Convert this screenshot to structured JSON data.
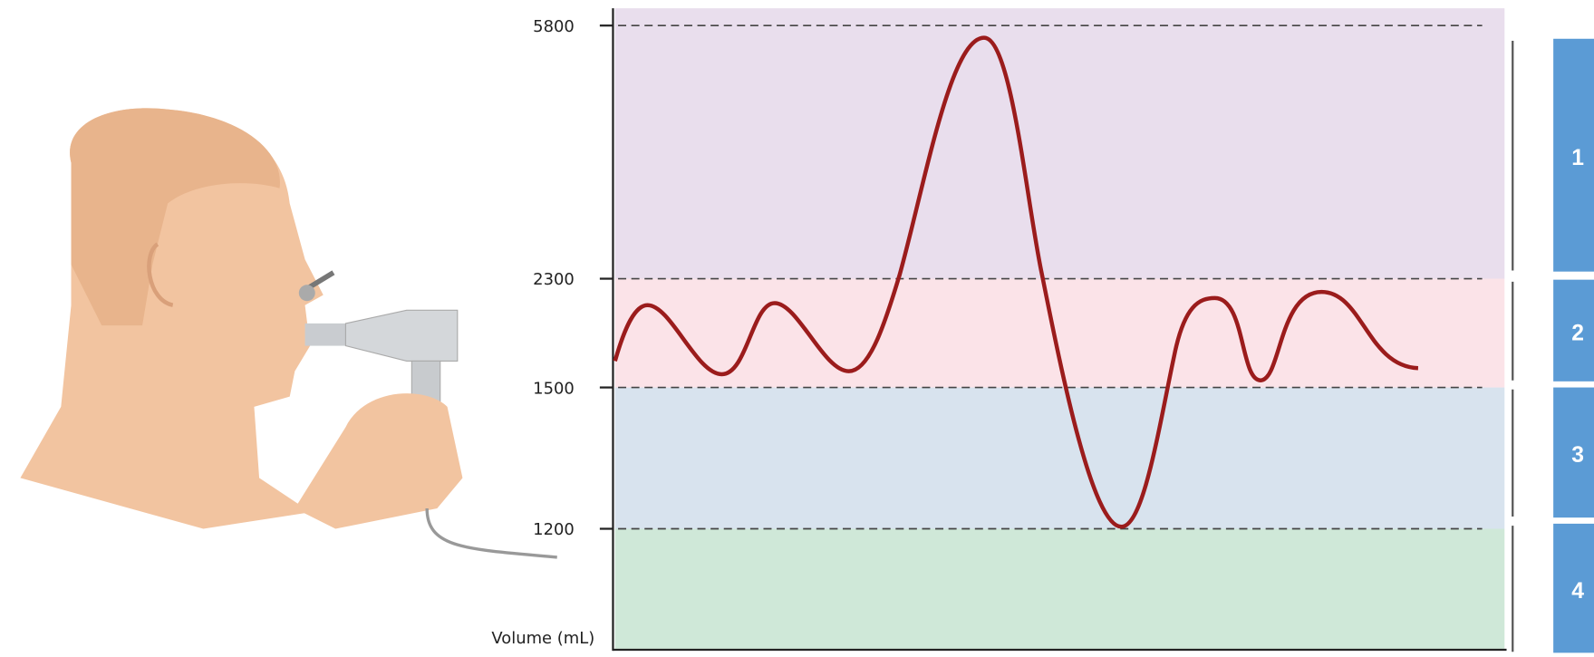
{
  "axis": {
    "label": "Volume (mL)",
    "ticks": [
      5800,
      2300,
      1500,
      1200
    ]
  },
  "zones": [
    "1",
    "2",
    "3",
    "4"
  ]
}
